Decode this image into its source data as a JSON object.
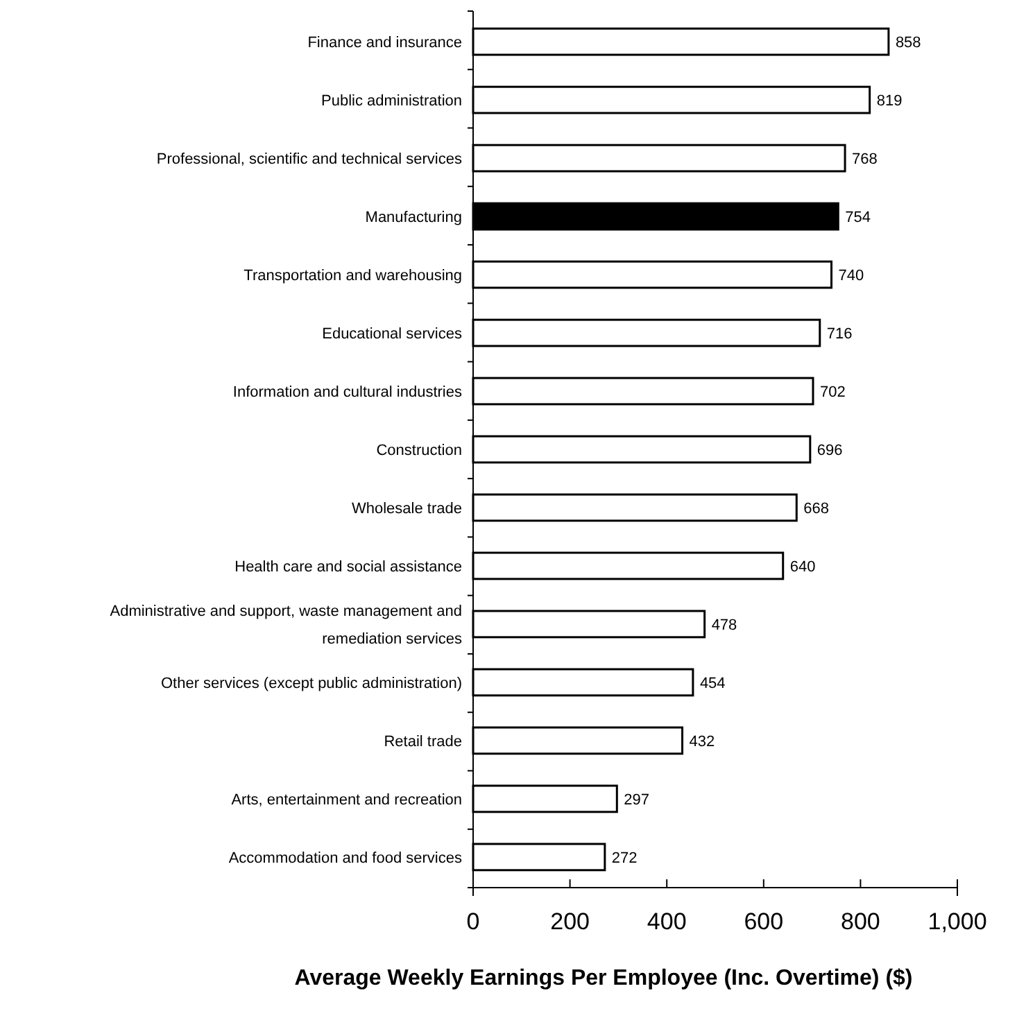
{
  "chart_data": {
    "type": "bar",
    "orientation": "horizontal",
    "categories": [
      "Finance and insurance",
      "Public administration",
      "Professional, scientific and technical services",
      "Manufacturing",
      "Transportation and warehousing",
      "Educational services",
      "Information and cultural industries",
      "Construction",
      "Wholesale trade",
      "Health care and social assistance",
      "Administrative and support, waste management and remediation services",
      "Other services (except public administration)",
      "Retail trade",
      "Arts, entertainment and recreation",
      "Accommodation and food services"
    ],
    "values": [
      858,
      819,
      768,
      754,
      740,
      716,
      702,
      696,
      668,
      640,
      478,
      454,
      432,
      297,
      272
    ],
    "colors": [
      "#ffffff",
      "#ffffff",
      "#ffffff",
      "#000000",
      "#ffffff",
      "#ffffff",
      "#ffffff",
      "#ffffff",
      "#ffffff",
      "#ffffff",
      "#ffffff",
      "#ffffff",
      "#ffffff",
      "#ffffff",
      "#ffffff"
    ],
    "xlim": [
      0,
      1000
    ],
    "xticks": [
      0,
      200,
      400,
      600,
      800,
      {
        "value": 1000,
        "label": "1,000"
      }
    ],
    "xlabel": "Average Weekly Earnings Per Employee (Inc. Overtime) ($)",
    "data_labels": true
  }
}
